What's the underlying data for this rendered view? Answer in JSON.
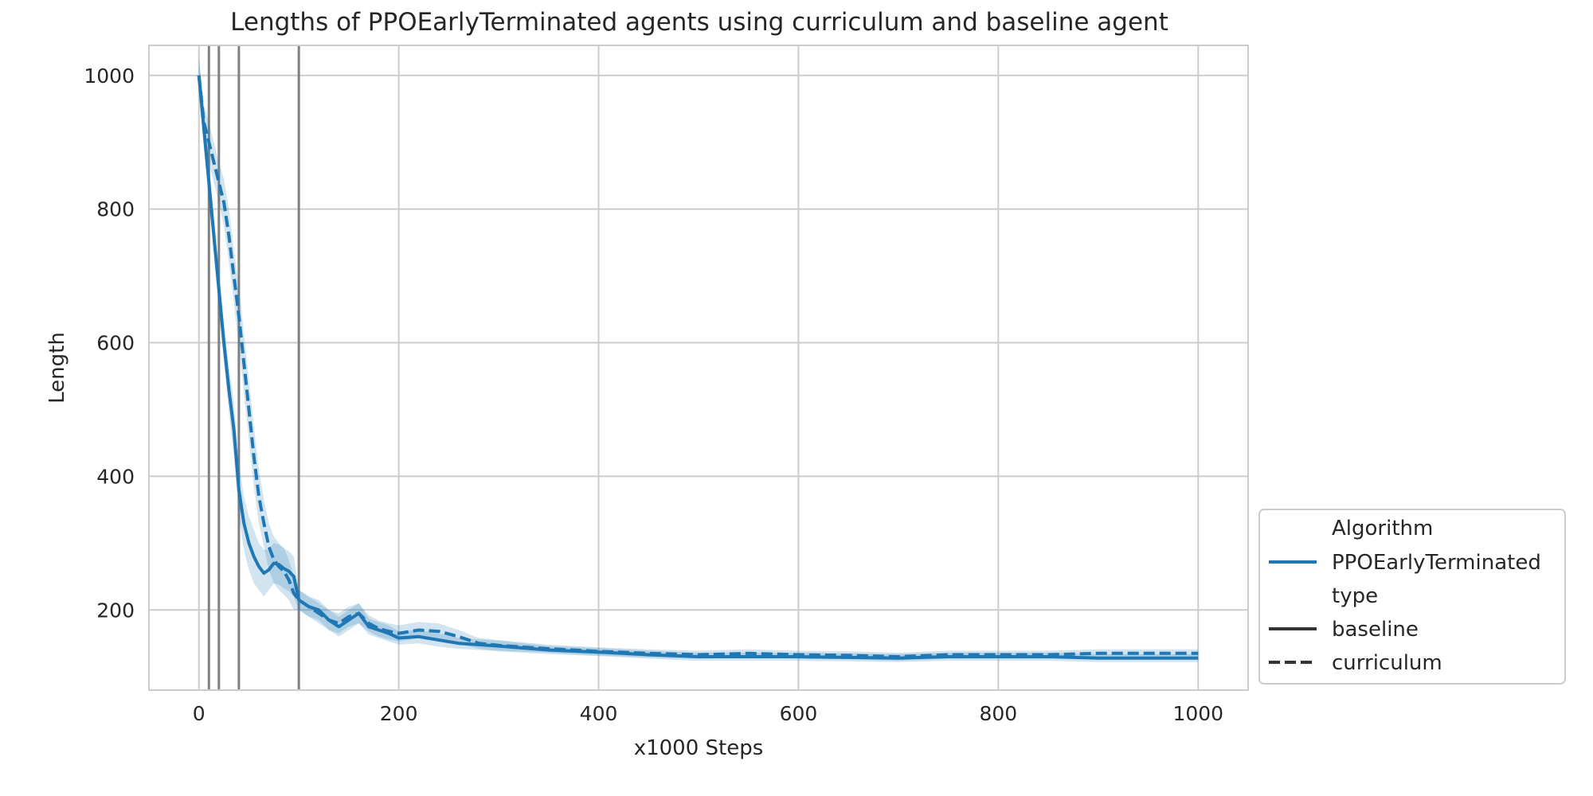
{
  "chart_data": {
    "type": "line",
    "title": "Lengths of PPOEarlyTerminated agents using curriculum and baseline agent",
    "xlabel": "x1000 Steps",
    "ylabel": "Length",
    "xlim": [
      -50,
      1050
    ],
    "ylim": [
      80,
      1045
    ],
    "xticks": [
      0,
      200,
      400,
      600,
      800,
      1000
    ],
    "yticks": [
      200,
      400,
      600,
      800,
      1000
    ],
    "grid": true,
    "line_color": "#1f77b4",
    "band_color": "#1f77b4",
    "vline_color": "#808080",
    "curriculum_switches": [
      10,
      20,
      40,
      100
    ],
    "legend": {
      "placement": "lower-right-outside",
      "hue_title": "Algorithm",
      "hue_entries": [
        "PPOEarlyTerminated"
      ],
      "style_title": "type",
      "style_entries": [
        "baseline",
        "curriculum"
      ]
    },
    "series": [
      {
        "name": "baseline",
        "style": "solid",
        "x": [
          0,
          5,
          10,
          15,
          20,
          25,
          30,
          35,
          40,
          45,
          50,
          55,
          60,
          65,
          70,
          75,
          80,
          85,
          90,
          95,
          100,
          110,
          120,
          130,
          140,
          150,
          160,
          170,
          180,
          190,
          200,
          220,
          240,
          260,
          280,
          300,
          350,
          400,
          450,
          500,
          550,
          600,
          650,
          700,
          750,
          800,
          850,
          900,
          950,
          1000
        ],
        "y": [
          1000,
          920,
          840,
          760,
          680,
          600,
          530,
          470,
          380,
          330,
          300,
          280,
          265,
          255,
          260,
          270,
          268,
          262,
          258,
          250,
          215,
          205,
          200,
          185,
          175,
          185,
          195,
          175,
          170,
          165,
          158,
          160,
          155,
          150,
          148,
          146,
          140,
          137,
          133,
          130,
          130,
          130,
          129,
          128,
          130,
          130,
          130,
          128,
          128,
          128
        ],
        "band": [
          30,
          30,
          30,
          30,
          30,
          30,
          35,
          40,
          40,
          40,
          40,
          40,
          35,
          35,
          30,
          30,
          30,
          30,
          30,
          30,
          15,
          15,
          15,
          15,
          15,
          15,
          15,
          12,
          12,
          12,
          10,
          10,
          10,
          8,
          8,
          8,
          6,
          6,
          6,
          6,
          6,
          6,
          6,
          6,
          6,
          6,
          6,
          6,
          6,
          6
        ]
      },
      {
        "name": "curriculum",
        "style": "dashed",
        "x": [
          0,
          5,
          10,
          15,
          20,
          25,
          30,
          35,
          40,
          45,
          50,
          55,
          60,
          65,
          70,
          75,
          80,
          85,
          90,
          95,
          100,
          110,
          120,
          130,
          140,
          150,
          160,
          170,
          180,
          190,
          200,
          220,
          240,
          260,
          280,
          300,
          350,
          400,
          450,
          500,
          550,
          600,
          650,
          700,
          750,
          800,
          850,
          900,
          950,
          1000
        ],
        "y": [
          1000,
          930,
          900,
          870,
          840,
          810,
          760,
          700,
          640,
          570,
          500,
          430,
          370,
          330,
          295,
          275,
          265,
          258,
          245,
          225,
          215,
          205,
          195,
          185,
          180,
          190,
          195,
          180,
          172,
          168,
          165,
          170,
          168,
          160,
          150,
          147,
          142,
          138,
          135,
          133,
          135,
          133,
          132,
          130,
          133,
          133,
          133,
          135,
          135,
          135
        ],
        "band": [
          25,
          25,
          30,
          30,
          30,
          35,
          40,
          40,
          45,
          45,
          45,
          45,
          40,
          35,
          35,
          35,
          35,
          35,
          30,
          25,
          15,
          15,
          15,
          15,
          15,
          15,
          15,
          12,
          12,
          12,
          12,
          12,
          12,
          10,
          8,
          8,
          6,
          6,
          6,
          6,
          6,
          6,
          6,
          6,
          6,
          6,
          6,
          6,
          6,
          6
        ]
      }
    ]
  }
}
